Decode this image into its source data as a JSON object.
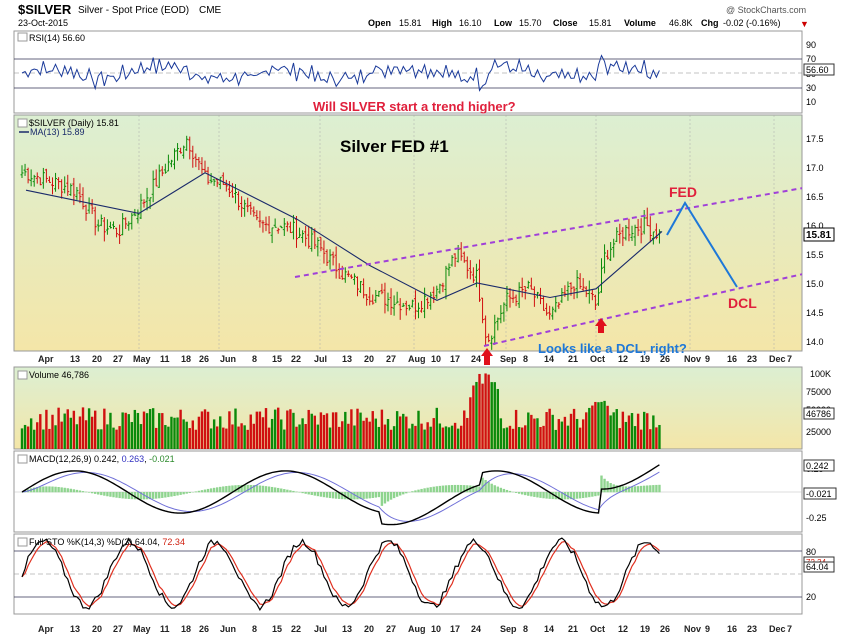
{
  "header": {
    "symbol": "$SILVER",
    "description": "Silver - Spot Price (EOD)",
    "exchange": "CME",
    "date": "23-Oct-2015",
    "brand": "@ StockCharts.com",
    "open_label": "Open",
    "open": "15.81",
    "high_label": "High",
    "high": "16.10",
    "low_label": "Low",
    "low": "15.70",
    "close_label": "Close",
    "close": "15.81",
    "volume_label": "Volume",
    "volume": "46.8K",
    "chg_label": "Chg",
    "chg": "-0.02 (-0.16%)"
  },
  "colors": {
    "up": "#0a8a0a",
    "down": "#d01010",
    "trend": "#a040d8",
    "annotation_blue": "#1e78d8",
    "annotation_red": "#e0203c",
    "panel_bg_top": "#dcefd2",
    "panel_bg_bottom": "#f4e6a8"
  },
  "rsi": {
    "legend": "RSI(14) 56.60",
    "value_badge": "56.60",
    "ticks": [
      "90",
      "70",
      "50",
      "30",
      "10"
    ]
  },
  "price": {
    "legend_symbol": "$SILVER (Daily) 15.81",
    "legend_ma": "MA(13) 15.89",
    "question": "Will SILVER start a trend higher?",
    "title": "Silver FED #1",
    "fed_label": "FED",
    "dcl_label": "DCL",
    "dcl_question": "Looks like a DCL, right?",
    "last_badge": "15.81",
    "ticks": [
      "17.5",
      "17.0",
      "16.5",
      "16.0",
      "15.5",
      "15.0",
      "14.5",
      "14.0"
    ]
  },
  "volume": {
    "legend": "Volume 46,786",
    "value_badge": "46786",
    "ticks": [
      "100K",
      "75000",
      "50000",
      "25000"
    ]
  },
  "macd": {
    "legend_prefix": "MACD(12,26,9)",
    "macd_value": "0.242",
    "signal_value": "0.263",
    "hist_value": "-0.021",
    "badge_macd": "0.242",
    "badge_hist": "-0.021",
    "ticks": [
      "0.25",
      "-0.25"
    ]
  },
  "sto": {
    "legend_prefix": "Full STO %K(14,3) %D(3)",
    "k_value": "64.04",
    "d_value": "72.34",
    "badge_k": "64.04",
    "badge_d": "72.34",
    "ticks": [
      "80",
      "20"
    ]
  },
  "x_labels": [
    "Apr",
    "13",
    "20",
    "27",
    "May",
    "11",
    "18",
    "26",
    "Jun",
    "8",
    "15",
    "22",
    "Jul",
    "13",
    "20",
    "27",
    "Aug",
    "10",
    "17",
    "24",
    "Sep",
    "8",
    "14",
    "21",
    "Oct",
    "12",
    "19",
    "26",
    "Nov",
    "9",
    "16",
    "23",
    "Dec",
    "7"
  ],
  "chart_data": {
    "type": "line",
    "title": "Silver FED #1",
    "price_axis_ticks": [
      14.0,
      14.5,
      15.0,
      15.5,
      16.0,
      16.5,
      17.0,
      17.5
    ],
    "price_close_samples": [
      {
        "x": "Apr 2",
        "y": 16.9
      },
      {
        "x": "Apr 13",
        "y": 16.6
      },
      {
        "x": "Apr 20",
        "y": 16.0
      },
      {
        "x": "Apr 27",
        "y": 15.9
      },
      {
        "x": "May 4",
        "y": 16.3
      },
      {
        "x": "May 11",
        "y": 17.0
      },
      {
        "x": "May 18",
        "y": 17.5
      },
      {
        "x": "May 26",
        "y": 16.8
      },
      {
        "x": "Jun 1",
        "y": 16.7
      },
      {
        "x": "Jun 8",
        "y": 16.0
      },
      {
        "x": "Jun 15",
        "y": 16.0
      },
      {
        "x": "Jun 22",
        "y": 15.9
      },
      {
        "x": "Jul 1",
        "y": 15.6
      },
      {
        "x": "Jul 8",
        "y": 15.2
      },
      {
        "x": "Jul 13",
        "y": 15.1
      },
      {
        "x": "Jul 20",
        "y": 14.8
      },
      {
        "x": "Jul 27",
        "y": 14.7
      },
      {
        "x": "Aug 3",
        "y": 14.6
      },
      {
        "x": "Aug 10",
        "y": 14.9
      },
      {
        "x": "Aug 17",
        "y": 15.5
      },
      {
        "x": "Aug 24",
        "y": 15.1
      },
      {
        "x": "Aug 27",
        "y": 14.0
      },
      {
        "x": "Sep 1",
        "y": 14.7
      },
      {
        "x": "Sep 8",
        "y": 14.9
      },
      {
        "x": "Sep 14",
        "y": 14.4
      },
      {
        "x": "Sep 21",
        "y": 15.0
      },
      {
        "x": "Sep 28",
        "y": 14.8
      },
      {
        "x": "Oct 2",
        "y": 14.6
      },
      {
        "x": "Oct 5",
        "y": 15.5
      },
      {
        "x": "Oct 12",
        "y": 15.9
      },
      {
        "x": "Oct 19",
        "y": 16.0
      },
      {
        "x": "Oct 23",
        "y": 15.81
      }
    ],
    "ma13": [
      {
        "x": "Apr 2",
        "y": 16.6
      },
      {
        "x": "May 4",
        "y": 16.2
      },
      {
        "x": "May 26",
        "y": 16.9
      },
      {
        "x": "Jun 22",
        "y": 16.1
      },
      {
        "x": "Jul 20",
        "y": 15.3
      },
      {
        "x": "Aug 10",
        "y": 14.7
      },
      {
        "x": "Aug 24",
        "y": 15.0
      },
      {
        "x": "Sep 14",
        "y": 14.75
      },
      {
        "x": "Oct 2",
        "y": 14.9
      },
      {
        "x": "Oct 23",
        "y": 15.89
      }
    ],
    "rsi_last": 56.6,
    "macd_last": 0.242,
    "signal_last": 0.263,
    "hist_last": -0.021,
    "sto_k_last": 64.04,
    "sto_d_last": 72.34,
    "volume_last": 46786
  }
}
